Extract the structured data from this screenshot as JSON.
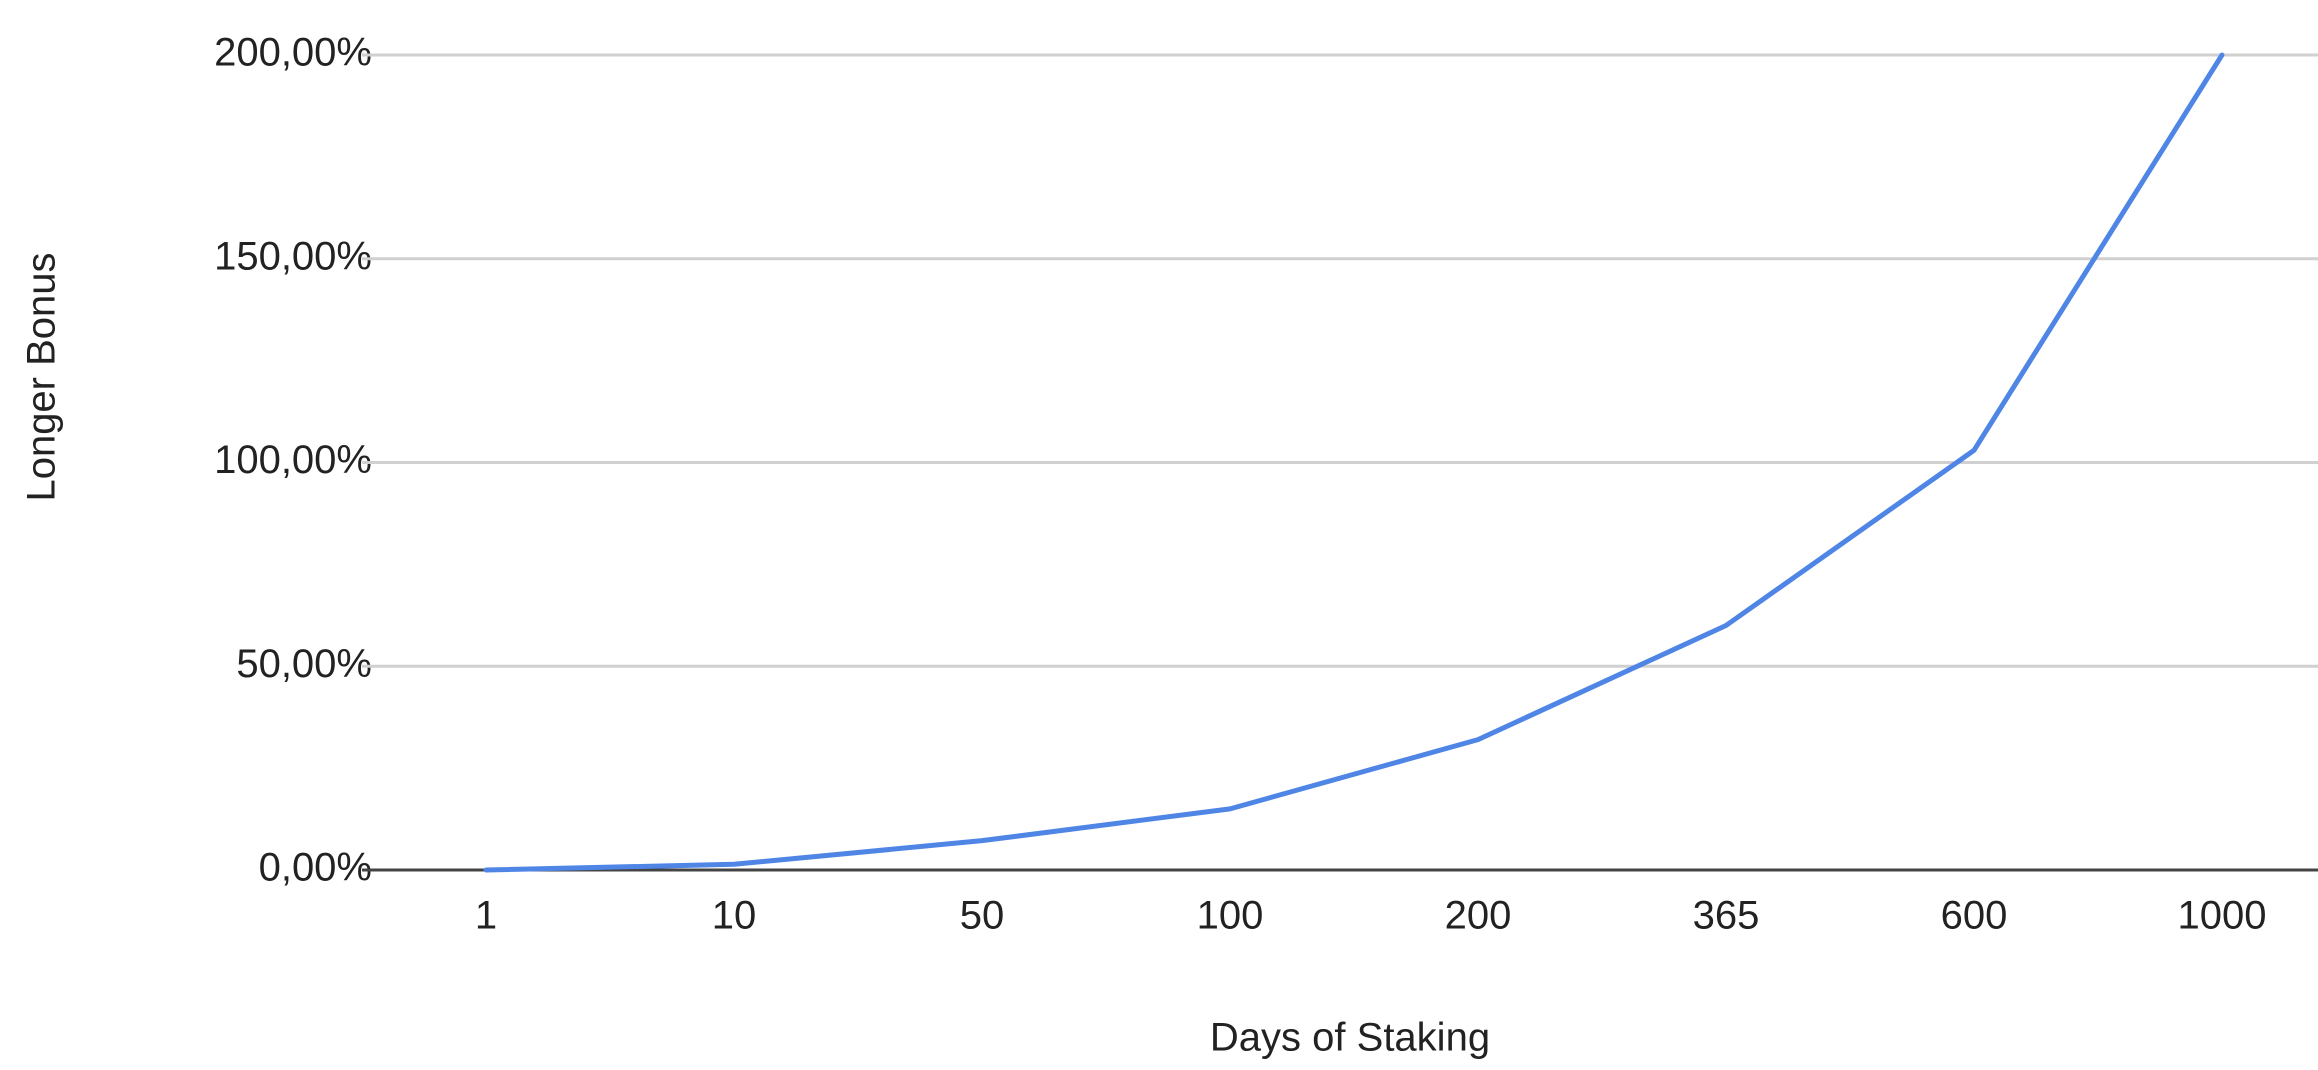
{
  "chart_data": {
    "type": "line",
    "x_label": "Days of Staking",
    "y_label": "Longer Bonus",
    "categories": [
      "1",
      "10",
      "50",
      "100",
      "200",
      "365",
      "600",
      "1000"
    ],
    "series": [
      {
        "name": "Longer Bonus",
        "color": "#4f86e6",
        "values": [
          0,
          1.4,
          7.2,
          15,
          32,
          60,
          103,
          200
        ]
      }
    ],
    "ylim": [
      0,
      200
    ],
    "yticks": [
      {
        "value": 0,
        "label": "0,00%"
      },
      {
        "value": 50,
        "label": "50,00%"
      },
      {
        "value": 100,
        "label": "100,00%"
      },
      {
        "value": 150,
        "label": "150,00%"
      },
      {
        "value": 200,
        "label": "200,00%"
      }
    ],
    "grid": true
  }
}
